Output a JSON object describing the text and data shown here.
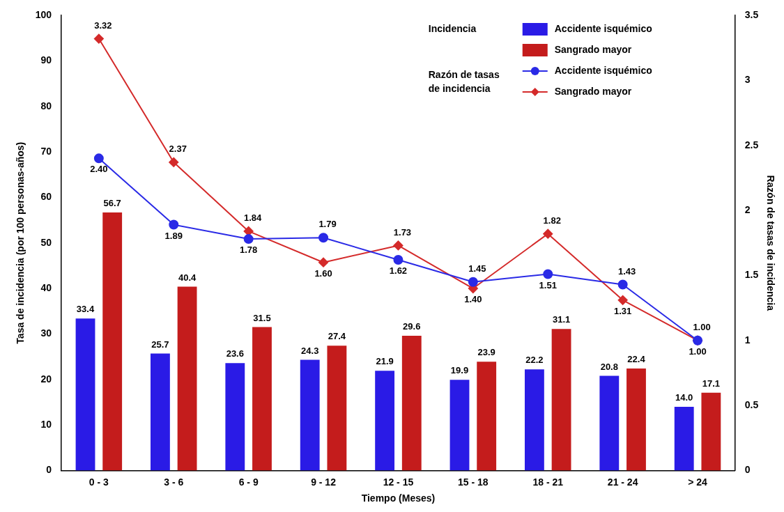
{
  "chart_data": {
    "type": "bar",
    "xlabel": "Tiempo (Meses)",
    "ylabel": "Tasa de incidencia (por 100 personas-años)",
    "y2label": "Razón de tasas de incidencia",
    "categories": [
      "0 - 3",
      "3 - 6",
      "6 - 9",
      "9 - 12",
      "12 - 15",
      "15 - 18",
      "18 - 21",
      "21 - 24",
      "> 24"
    ],
    "series": [
      {
        "name": "Accidente isquémico",
        "color": "#2a1be6",
        "values": [
          33.4,
          25.7,
          23.6,
          24.3,
          21.9,
          19.9,
          22.2,
          20.8,
          14.0
        ],
        "value_labels": [
          "33.4",
          "25.7",
          "23.6",
          "24.3",
          "21.9",
          "19.9",
          "22.2",
          "20.8",
          "14.0"
        ]
      },
      {
        "name": "Sangrado mayor",
        "color": "#c41c1c",
        "values": [
          56.7,
          40.4,
          31.5,
          27.4,
          29.6,
          23.9,
          31.1,
          22.4,
          17.1
        ],
        "value_labels": [
          "56.7",
          "40.4",
          "31.5",
          "27.4",
          "29.6",
          "23.9",
          "31.1",
          "22.4",
          "17.1"
        ]
      },
      {
        "name": "Accidente isquémico",
        "type": "line",
        "axis": "y2",
        "marker": "circle",
        "color": "#2a2ae6",
        "values": [
          2.4,
          1.89,
          1.78,
          1.79,
          1.62,
          1.45,
          1.51,
          1.43,
          1.0
        ],
        "value_labels": [
          "2.40",
          "1.89",
          "1.78",
          "1.79",
          "1.62",
          "1.45",
          "1.51",
          "1.43",
          "1.00"
        ]
      },
      {
        "name": "Sangrado mayor",
        "type": "line",
        "axis": "y2",
        "marker": "diamond",
        "color": "#d42a2a",
        "values": [
          3.32,
          2.37,
          1.84,
          1.6,
          1.73,
          1.4,
          1.82,
          1.31,
          1.0
        ],
        "value_labels": [
          "3.32",
          "2.37",
          "1.84",
          "1.60",
          "1.73",
          "1.40",
          "1.82",
          "1.31",
          "1.00"
        ]
      }
    ],
    "ylim": [
      0,
      100
    ],
    "yticks": [
      0,
      10,
      20,
      30,
      40,
      50,
      60,
      70,
      80,
      90,
      100
    ],
    "y2lim": [
      0,
      3.5
    ],
    "y2ticks": [
      0,
      0.5,
      1,
      1.5,
      2,
      2.5,
      3,
      3.5
    ],
    "grid": false,
    "legend": "top right",
    "line_style": "solid",
    "annotations": [
      "Incidencia",
      "Razón de tasas\nde incidencia"
    ]
  }
}
